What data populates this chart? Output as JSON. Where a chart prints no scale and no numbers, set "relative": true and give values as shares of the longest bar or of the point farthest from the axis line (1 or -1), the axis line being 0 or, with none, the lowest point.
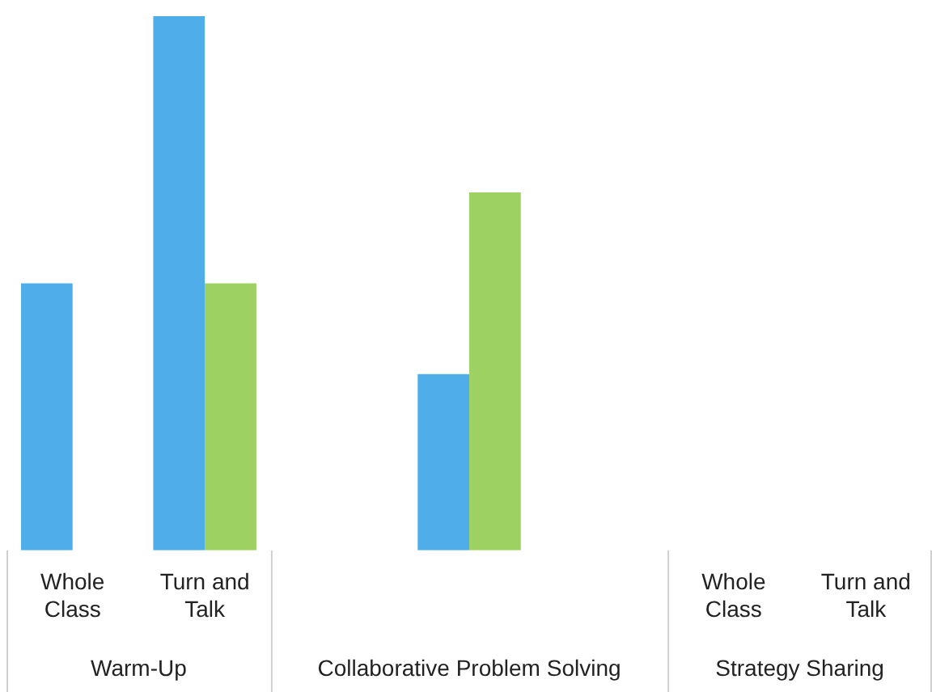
{
  "chart_data": {
    "type": "bar",
    "relative": true,
    "categories": [
      "Whole Class",
      "Turn and Talk",
      null,
      null,
      null,
      "Whole Class",
      "Turn and Talk"
    ],
    "series": [
      {
        "color": "#4faeea",
        "values": [
          0.5,
          1,
          null,
          0.33,
          null,
          null,
          null
        ]
      },
      {
        "color": "#9dd161",
        "values": [
          null,
          0.5,
          null,
          0.67,
          null,
          null,
          null
        ]
      }
    ],
    "annotations": [
      "Warm-Up",
      "Collaborative Problem Solving",
      "Strategy Sharing"
    ],
    "grid": false,
    "legend": false
  }
}
